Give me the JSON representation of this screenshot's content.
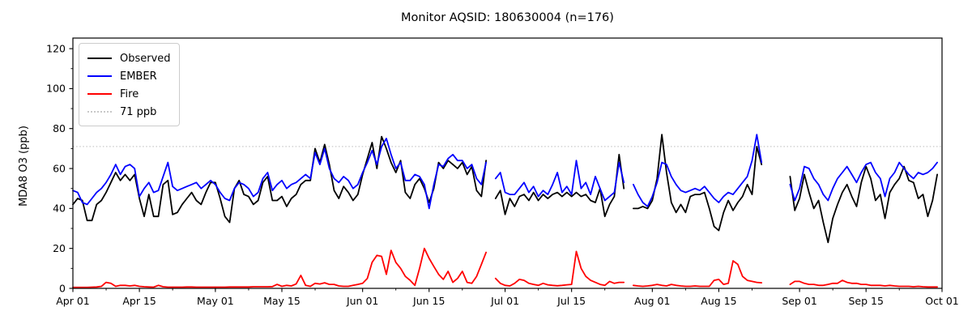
{
  "chart_data": {
    "type": "line",
    "title": "Monitor AQSID: 180630004 (n=176)",
    "ylabel": "MDA8 O3 (ppb)",
    "xlabel": "",
    "ylim": [
      0,
      125.3
    ],
    "x_axis": {
      "start_label": "Apr 01",
      "end_label": "Oct 01",
      "days_total": 183,
      "major_ticks": [
        {
          "label": "Apr 01",
          "day": 0
        },
        {
          "label": "Apr 15",
          "day": 14
        },
        {
          "label": "May 01",
          "day": 30
        },
        {
          "label": "May 15",
          "day": 44
        },
        {
          "label": "Jun 01",
          "day": 61
        },
        {
          "label": "Jun 15",
          "day": 75
        },
        {
          "label": "Jul 01",
          "day": 91
        },
        {
          "label": "Jul 15",
          "day": 105
        },
        {
          "label": "Aug 01",
          "day": 122
        },
        {
          "label": "Aug 15",
          "day": 136
        },
        {
          "label": "Sep 01",
          "day": 153
        },
        {
          "label": "Sep 15",
          "day": 167
        },
        {
          "label": "Oct 01",
          "day": 183
        }
      ],
      "minor_tick_days": [
        7,
        21,
        37,
        51,
        68,
        82,
        98,
        112,
        129,
        143,
        160,
        174
      ]
    },
    "y_axis": {
      "major_ticks": [
        0,
        20,
        40,
        60,
        80,
        100,
        120
      ],
      "minor_ticks": [
        10,
        30,
        50,
        70,
        90,
        110
      ]
    },
    "threshold": {
      "label": "71 ppb",
      "value": 71,
      "color": "#c8c8c8",
      "style": "dotted"
    },
    "legend": {
      "position": "upper left",
      "items": [
        {
          "label": "Observed",
          "color": "#000000",
          "style": "solid"
        },
        {
          "label": "EMBER",
          "color": "#0000ff",
          "style": "solid"
        },
        {
          "label": "Fire",
          "color": "#ff0000",
          "style": "solid"
        },
        {
          "label": "71 ppb",
          "color": "#c8c8c8",
          "style": "dotted"
        }
      ]
    },
    "missing_dates": [
      "Jun 28",
      "Jul 27",
      "Aug 25",
      "Aug 26",
      "Aug 27",
      "Aug 28",
      "Aug 29"
    ],
    "n_points": 176,
    "series": [
      {
        "name": "Observed",
        "color": "#000000",
        "values": [
          42,
          45,
          44,
          34,
          34,
          42,
          44,
          48,
          53,
          58,
          54,
          57,
          54,
          57,
          45,
          36,
          47,
          36,
          36,
          52,
          54,
          37,
          38,
          42,
          45,
          48,
          44,
          42,
          48,
          53,
          53,
          45,
          36,
          33,
          50,
          54,
          47,
          46,
          42,
          44,
          53,
          56,
          44,
          44,
          46,
          41,
          45,
          47,
          52,
          54,
          54,
          70,
          63,
          72,
          62,
          49,
          45,
          51,
          48,
          44,
          47,
          57,
          65,
          73,
          60,
          76,
          70,
          63,
          58,
          64,
          48,
          45,
          52,
          55,
          50,
          43,
          50,
          63,
          60,
          64,
          62,
          60,
          63,
          57,
          61,
          49,
          46,
          64,
          null,
          45,
          49,
          37,
          45,
          41,
          46,
          47,
          44,
          48,
          44,
          47,
          45,
          47,
          48,
          46,
          48,
          46,
          48,
          46,
          47,
          44,
          43,
          50,
          36,
          42,
          46,
          67,
          50,
          null,
          40,
          40,
          41,
          40,
          44,
          55,
          77,
          58,
          43,
          38,
          42,
          38,
          46,
          47,
          47,
          48,
          40,
          31,
          29,
          38,
          44,
          39,
          43,
          46,
          52,
          47,
          71,
          62,
          null,
          null,
          null,
          null,
          null,
          56,
          39,
          45,
          57,
          48,
          40,
          44,
          33,
          23,
          35,
          42,
          48,
          52,
          46,
          41,
          53,
          61,
          55,
          44,
          47,
          35,
          48,
          52,
          55,
          61,
          54,
          53,
          45,
          47,
          36,
          44,
          57
        ]
      },
      {
        "name": "EMBER",
        "color": "#0000ff",
        "values": [
          49,
          48,
          43,
          42,
          45,
          48,
          50,
          53,
          57,
          62,
          57,
          61,
          62,
          60,
          46,
          50,
          53,
          48,
          49,
          56,
          63,
          51,
          49,
          50,
          51,
          52,
          53,
          50,
          52,
          54,
          52,
          48,
          45,
          44,
          50,
          53,
          52,
          50,
          46,
          48,
          55,
          58,
          49,
          52,
          54,
          50,
          52,
          53,
          55,
          57,
          55,
          68,
          62,
          70,
          60,
          55,
          53,
          56,
          54,
          50,
          52,
          58,
          63,
          69,
          62,
          71,
          75,
          67,
          60,
          63,
          54,
          54,
          57,
          56,
          52,
          40,
          52,
          62,
          61,
          65,
          67,
          64,
          64,
          60,
          62,
          55,
          52,
          63,
          null,
          55,
          58,
          48,
          47,
          47,
          50,
          53,
          48,
          51,
          46,
          49,
          47,
          52,
          58,
          48,
          51,
          47,
          64,
          50,
          53,
          47,
          56,
          50,
          44,
          46,
          48,
          63,
          53,
          null,
          52,
          47,
          43,
          41,
          46,
          53,
          63,
          62,
          56,
          52,
          49,
          48,
          49,
          50,
          49,
          51,
          48,
          45,
          43,
          46,
          48,
          47,
          50,
          53,
          56,
          64,
          77,
          63,
          null,
          null,
          null,
          null,
          null,
          52,
          44,
          50,
          61,
          60,
          55,
          52,
          47,
          44,
          50,
          55,
          58,
          61,
          57,
          53,
          58,
          62,
          63,
          58,
          55,
          46,
          55,
          58,
          63,
          60,
          57,
          55,
          58,
          57,
          58,
          60,
          63
        ]
      },
      {
        "name": "Fire",
        "color": "#ff0000",
        "values": [
          0.5,
          0.5,
          0.5,
          0.5,
          0.6,
          0.7,
          1.0,
          3.0,
          2.5,
          1.0,
          1.5,
          1.5,
          1.2,
          1.5,
          1.0,
          0.8,
          0.7,
          0.6,
          1.5,
          0.8,
          0.6,
          0.6,
          0.6,
          0.6,
          0.7,
          0.7,
          0.6,
          0.6,
          0.6,
          0.6,
          0.6,
          0.6,
          0.6,
          0.7,
          0.7,
          0.7,
          0.7,
          0.7,
          0.8,
          0.8,
          0.8,
          0.8,
          0.9,
          2.0,
          1.0,
          1.5,
          1.2,
          2.2,
          6.5,
          1.5,
          1.0,
          2.5,
          2.2,
          2.8,
          2.0,
          2.0,
          1.2,
          1.0,
          1.0,
          1.5,
          2.0,
          2.5,
          5,
          13,
          16.5,
          16,
          7,
          19,
          13,
          10,
          6,
          4,
          1.5,
          10,
          20,
          15,
          11,
          7,
          4.5,
          8.5,
          3,
          5,
          8.5,
          3,
          2.5,
          6,
          12,
          18,
          null,
          5,
          2.5,
          1.5,
          1.2,
          2.5,
          4.5,
          4,
          2.5,
          2,
          1.5,
          2.5,
          1.8,
          1.5,
          1.3,
          1.5,
          1.8,
          2,
          18.5,
          10,
          6,
          4,
          3,
          2,
          1.5,
          3.5,
          2.5,
          3,
          3,
          null,
          1.5,
          1.2,
          1,
          1.2,
          1.5,
          2,
          1.5,
          1.2,
          2,
          1.5,
          1.2,
          1,
          1,
          1.2,
          1,
          1,
          1,
          4,
          4.5,
          2,
          2.5,
          13.8,
          12,
          6,
          4,
          3.5,
          3,
          2.8,
          null,
          null,
          null,
          null,
          null,
          2,
          3.5,
          3.5,
          2.5,
          2,
          2,
          1.5,
          1.5,
          2,
          2.5,
          2.5,
          4,
          3,
          2.5,
          2.5,
          2,
          2,
          1.5,
          1.5,
          1.5,
          1.2,
          1.5,
          1.2,
          1,
          1,
          1,
          0.8,
          1,
          0.8,
          0.7,
          0.7,
          0.7
        ]
      }
    ]
  }
}
